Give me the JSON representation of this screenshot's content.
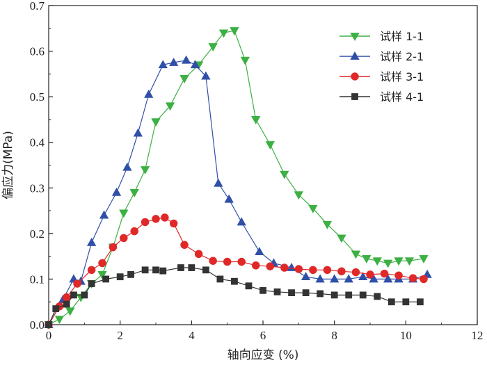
{
  "chart_data": {
    "type": "line",
    "xlabel": "轴向应变 (%)",
    "ylabel": "偏应力(MPa)",
    "xlim": [
      0,
      12
    ],
    "ylim": [
      0,
      0.7
    ],
    "xticks": [
      0,
      2,
      4,
      6,
      8,
      10,
      12
    ],
    "yticks": [
      0.0,
      0.1,
      0.2,
      0.3,
      0.4,
      0.5,
      0.6,
      0.7
    ],
    "ytick_labels": [
      "0.0",
      "0.1",
      "0.2",
      "0.3",
      "0.4",
      "0.5",
      "0.6",
      "0.7"
    ],
    "grid": false,
    "legend_position": "top-right",
    "series": [
      {
        "name": "试样 1-1",
        "color": "#3cb043",
        "marker": "triangle-down",
        "x": [
          0.0,
          0.3,
          0.6,
          0.9,
          1.2,
          1.5,
          1.8,
          2.1,
          2.4,
          2.7,
          3.0,
          3.4,
          3.8,
          4.2,
          4.6,
          4.9,
          5.2,
          5.5,
          5.8,
          6.2,
          6.6,
          7.0,
          7.4,
          7.8,
          8.2,
          8.6,
          8.9,
          9.2,
          9.5,
          9.8,
          10.1,
          10.5
        ],
        "y": [
          0.0,
          0.012,
          0.03,
          0.06,
          0.09,
          0.11,
          0.17,
          0.245,
          0.29,
          0.34,
          0.445,
          0.48,
          0.54,
          0.57,
          0.61,
          0.64,
          0.645,
          0.58,
          0.45,
          0.395,
          0.33,
          0.285,
          0.255,
          0.22,
          0.19,
          0.155,
          0.145,
          0.14,
          0.135,
          0.14,
          0.14,
          0.145
        ]
      },
      {
        "name": "试样 2-1",
        "color": "#3050a8",
        "marker": "triangle-up",
        "x": [
          0.0,
          0.4,
          0.7,
          0.9,
          1.2,
          1.55,
          1.9,
          2.2,
          2.5,
          2.8,
          3.2,
          3.5,
          3.85,
          4.1,
          4.4,
          4.75,
          5.05,
          5.4,
          5.9,
          6.3,
          6.8,
          7.2,
          7.6,
          8.0,
          8.4,
          8.8,
          9.1,
          9.5,
          9.8,
          10.2,
          10.6
        ],
        "y": [
          0.0,
          0.055,
          0.1,
          0.095,
          0.18,
          0.24,
          0.29,
          0.345,
          0.42,
          0.505,
          0.57,
          0.575,
          0.58,
          0.57,
          0.545,
          0.31,
          0.275,
          0.225,
          0.16,
          0.135,
          0.125,
          0.105,
          0.1,
          0.1,
          0.1,
          0.105,
          0.1,
          0.1,
          0.1,
          0.1,
          0.11
        ]
      },
      {
        "name": "试样 3-1",
        "color": "#e02828",
        "marker": "circle",
        "x": [
          0.0,
          0.3,
          0.5,
          0.8,
          1.2,
          1.5,
          1.8,
          2.1,
          2.4,
          2.7,
          3.0,
          3.25,
          3.5,
          3.8,
          4.2,
          4.6,
          5.0,
          5.4,
          5.8,
          6.2,
          6.6,
          7.0,
          7.4,
          7.8,
          8.2,
          8.6,
          9.0,
          9.4,
          9.8,
          10.2,
          10.5
        ],
        "y": [
          0.0,
          0.04,
          0.06,
          0.09,
          0.12,
          0.135,
          0.17,
          0.19,
          0.205,
          0.225,
          0.232,
          0.235,
          0.222,
          0.175,
          0.155,
          0.14,
          0.138,
          0.138,
          0.13,
          0.128,
          0.125,
          0.122,
          0.12,
          0.12,
          0.117,
          0.115,
          0.11,
          0.112,
          0.108,
          0.102,
          0.1
        ]
      },
      {
        "name": "试样 4-1",
        "color": "#333333",
        "marker": "square",
        "x": [
          0.0,
          0.2,
          0.5,
          0.7,
          1.0,
          1.2,
          1.6,
          2.0,
          2.3,
          2.7,
          3.0,
          3.2,
          3.7,
          4.0,
          4.4,
          4.8,
          5.2,
          5.6,
          6.0,
          6.4,
          6.8,
          7.2,
          7.6,
          8.0,
          8.4,
          8.8,
          9.2,
          9.6,
          10.0,
          10.4
        ],
        "y": [
          0.0,
          0.035,
          0.045,
          0.065,
          0.065,
          0.09,
          0.1,
          0.105,
          0.11,
          0.12,
          0.12,
          0.118,
          0.125,
          0.125,
          0.12,
          0.1,
          0.095,
          0.085,
          0.075,
          0.072,
          0.07,
          0.07,
          0.068,
          0.065,
          0.065,
          0.065,
          0.062,
          0.05,
          0.05,
          0.05
        ]
      }
    ]
  }
}
